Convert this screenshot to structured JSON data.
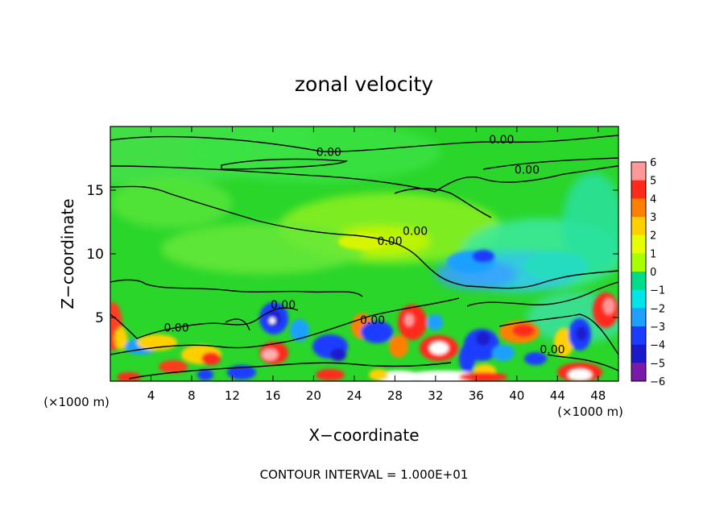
{
  "chart_data": {
    "type": "heatmap",
    "title": "zonal velocity",
    "xlabel": "X−coordinate",
    "ylabel": "Z−coordinate",
    "x_unit_left": "(×1000 m)",
    "x_unit_right": "(×1000 m)",
    "xlim": [
      0,
      50
    ],
    "ylim": [
      0,
      20
    ],
    "x_ticks": [
      4,
      8,
      12,
      16,
      20,
      24,
      28,
      32,
      36,
      40,
      44,
      48
    ],
    "y_ticks": [
      5,
      10,
      15
    ],
    "colorbar": {
      "ticks": [
        "6",
        "5",
        "4",
        "3",
        "2",
        "1",
        "0",
        "−1",
        "−2",
        "−3",
        "−4",
        "−5",
        "−6"
      ],
      "range": [
        -6,
        6
      ]
    },
    "contour_labels": [
      {
        "text": "0.00",
        "x": 38.5,
        "y": 19.0
      },
      {
        "text": "0.00",
        "x": 21.5,
        "y": 18.0
      },
      {
        "text": "0.00",
        "x": 41.0,
        "y": 16.6
      },
      {
        "text": "0.00",
        "x": 30.0,
        "y": 11.8
      },
      {
        "text": "0.00",
        "x": 27.5,
        "y": 11.0
      },
      {
        "text": "0.00",
        "x": 17.0,
        "y": 6.0
      },
      {
        "text": "0.00",
        "x": 25.8,
        "y": 4.8
      },
      {
        "text": "0.00",
        "x": 6.5,
        "y": 4.2
      },
      {
        "text": "0.00",
        "x": 43.5,
        "y": 2.5
      }
    ],
    "grid": false,
    "legend": "colorbar right"
  },
  "footer": {
    "contour_interval": "CONTOUR INTERVAL = 1.000E+01"
  },
  "colors": {
    "zero": "#2bd62b",
    "positive": [
      "#a8ff00",
      "#e6ff00",
      "#ffd000",
      "#ff8000",
      "#ff2a1a",
      "#ff9999"
    ],
    "negative": [
      "#00dd88",
      "#00e6e6",
      "#1fa0ff",
      "#1c3cff",
      "#1a1acc",
      "#7a1aa8"
    ]
  }
}
